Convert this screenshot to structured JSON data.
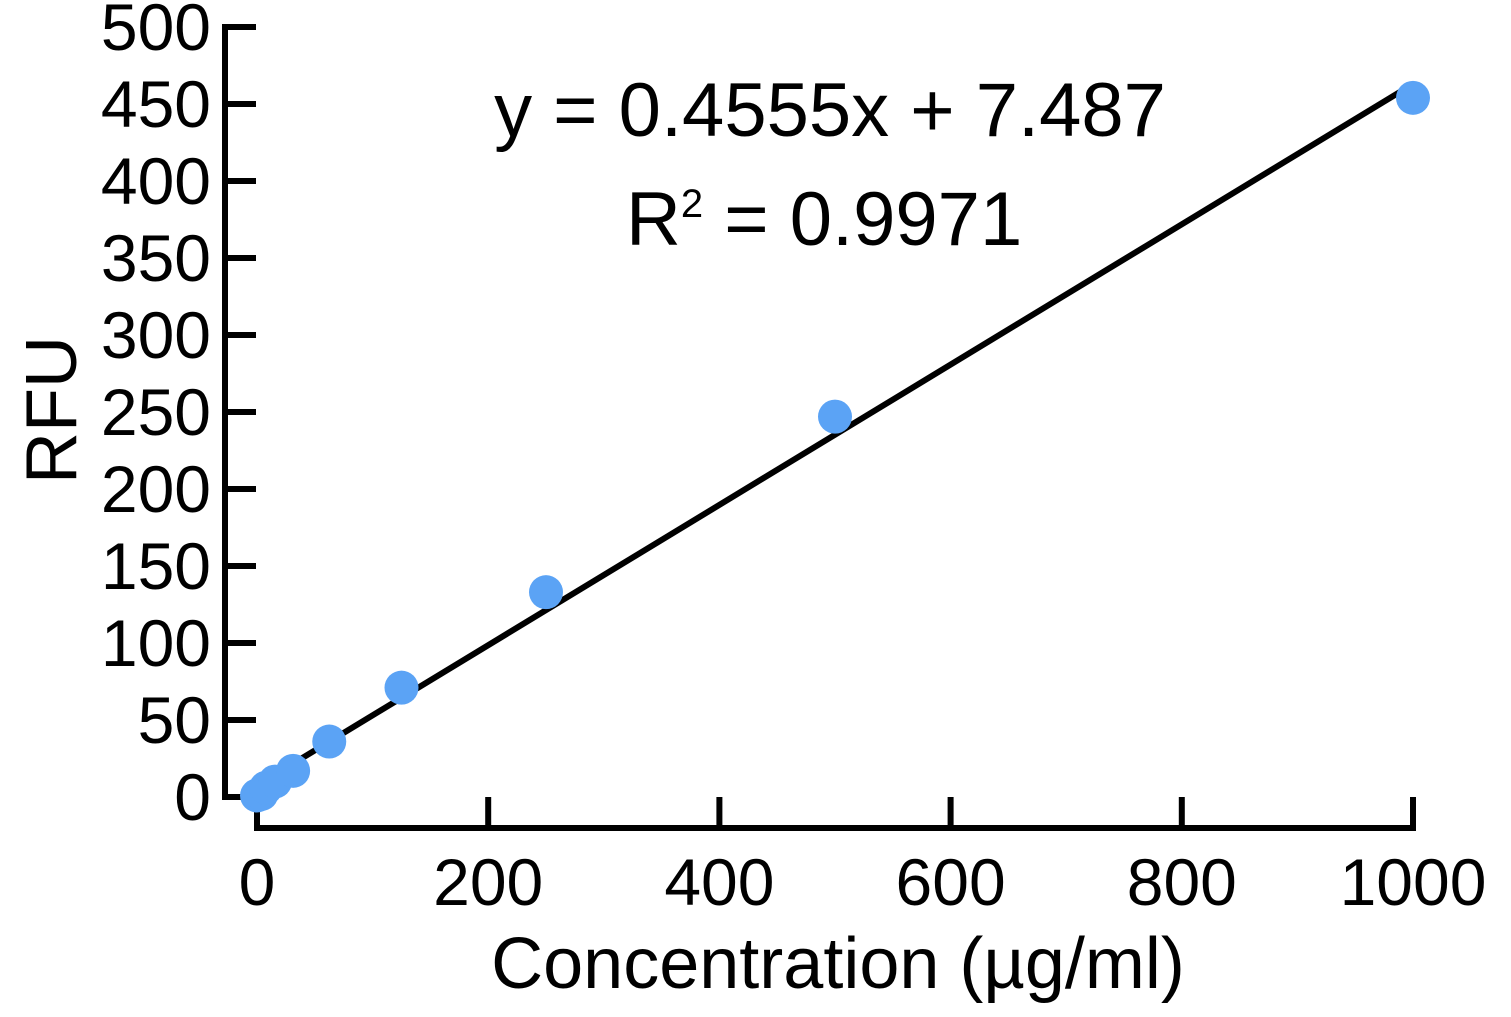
{
  "chart_data": {
    "type": "scatter",
    "xlabel": "Concentration (µg/ml)",
    "ylabel": "RFU",
    "xlim": [
      0,
      1000
    ],
    "ylim": [
      0,
      500
    ],
    "x_ticks": [
      "0",
      "200",
      "400",
      "600",
      "800",
      "1000"
    ],
    "y_ticks": [
      "0",
      "50",
      "100",
      "150",
      "200",
      "250",
      "300",
      "350",
      "400",
      "450",
      "500"
    ],
    "grid": false,
    "series": [
      {
        "x": [
          0,
          3.9,
          7.8,
          15.6,
          31.25,
          62.5,
          125,
          250,
          500,
          1000
        ],
        "y": [
          1,
          2,
          6,
          10,
          17,
          36,
          71,
          133,
          247,
          454
        ],
        "color": "#5ba3f5"
      }
    ],
    "trendline": {
      "slope": 0.4555,
      "intercept": 7.487,
      "color": "#000000"
    },
    "annotations": {
      "equation": "y = 0.4555x + 7.487",
      "r2_label": "R",
      "r2_sup": "2",
      "r2_value": " = 0.9971"
    }
  }
}
